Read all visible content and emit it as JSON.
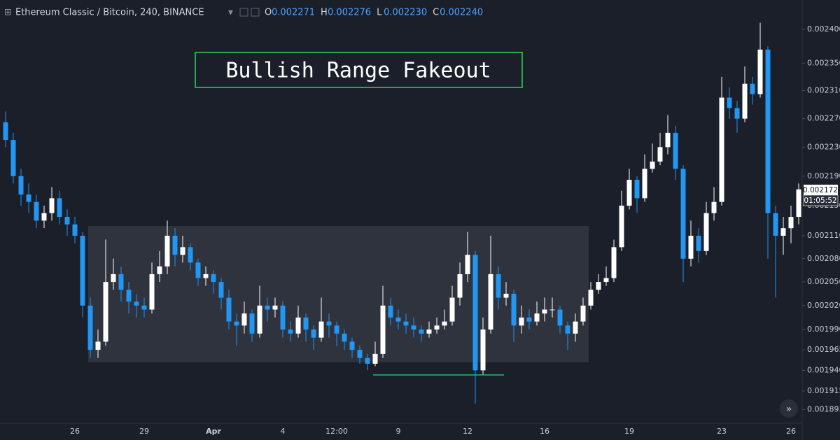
{
  "chart_data": {
    "type": "candlestick",
    "symbol": "Ethereum Classic / Bitcoin, 240, BINANCE",
    "ohlc_legend": [
      {
        "label": "O",
        "value": 0.002271
      },
      {
        "label": "H",
        "value": 0.002276
      },
      {
        "label": "L",
        "value": 0.00223
      },
      {
        "label": "C",
        "value": 0.00224
      }
    ],
    "ohlc_value_labels": [
      "0.002271",
      "0.002276",
      "0.002230",
      "0.002240"
    ],
    "annotation": "Bullish Range Fakeout",
    "last_price": 0.002172,
    "last_price_label": "0.002172",
    "countdown": "01:05:52",
    "up_color": "#ffffff",
    "down_color": "#2196f3",
    "log_scale": true,
    "ylim": [
      0.001877,
      0.0024445
    ],
    "yticks": [
      {
        "value": 0.0024,
        "label": "0.002400"
      },
      {
        "value": 0.00235,
        "label": "0.002350"
      },
      {
        "value": 0.00231,
        "label": "0.002310"
      },
      {
        "value": 0.00227,
        "label": "0.002270"
      },
      {
        "value": 0.00223,
        "label": "0.002230"
      },
      {
        "value": 0.00219,
        "label": "0.002190"
      },
      {
        "value": 0.00215,
        "label": "0.002150"
      },
      {
        "value": 0.00211,
        "label": "0.002110"
      },
      {
        "value": 0.00208,
        "label": "0.002080"
      },
      {
        "value": 0.00205,
        "label": "0.002050"
      },
      {
        "value": 0.00202,
        "label": "0.002020"
      },
      {
        "value": 0.00199,
        "label": "0.001990"
      },
      {
        "value": 0.001965,
        "label": "0.001965"
      },
      {
        "value": 0.00194,
        "label": "0.001940"
      },
      {
        "value": 0.001915,
        "label": "0.001915"
      },
      {
        "value": 0.001893,
        "label": "0.001893"
      }
    ],
    "categories": [
      null,
      null,
      null,
      null,
      null,
      null,
      null,
      null,
      null,
      "26",
      null,
      null,
      null,
      null,
      null,
      null,
      null,
      null,
      "29",
      null,
      null,
      null,
      null,
      null,
      null,
      null,
      null,
      "Apr",
      null,
      null,
      null,
      null,
      null,
      null,
      null,
      null,
      "4",
      null,
      null,
      null,
      null,
      null,
      null,
      "12:00",
      null,
      null,
      null,
      null,
      null,
      null,
      null,
      "9",
      null,
      null,
      null,
      null,
      null,
      null,
      null,
      null,
      "12",
      null,
      null,
      null,
      null,
      null,
      null,
      null,
      null,
      null,
      "16",
      null,
      null,
      null,
      null,
      null,
      null,
      null,
      null,
      null,
      null,
      "19",
      null,
      null,
      null,
      null,
      null,
      null,
      null,
      null,
      null,
      null,
      null,
      "23",
      null,
      null,
      null,
      null,
      null,
      null,
      null,
      null,
      "26",
      null
    ],
    "open": [
      0.002265,
      0.00224,
      0.00219,
      0.002165,
      0.002155,
      0.00213,
      0.00214,
      0.00216,
      0.002135,
      0.002125,
      0.00211,
      0.00202,
      0.001965,
      0.001975,
      0.00205,
      0.00206,
      0.00204,
      0.002025,
      0.00202,
      0.002015,
      0.00206,
      0.00207,
      0.00211,
      0.002085,
      0.002095,
      0.002075,
      0.002055,
      0.00206,
      0.00205,
      0.00203,
      0.002,
      0.001995,
      0.00201,
      0.001985,
      0.00202,
      0.002015,
      0.00202,
      0.00199,
      0.001985,
      0.002005,
      0.00199,
      0.00198,
      0.002,
      0.001995,
      0.001985,
      0.001975,
      0.001965,
      0.001955,
      0.001948,
      0.00196,
      0.00202,
      0.002005,
      0.002,
      0.001995,
      0.00199,
      0.001985,
      0.00199,
      0.001995,
      0.002,
      0.00203,
      0.00206,
      0.002085,
      0.00194,
      0.00199,
      0.00206,
      0.00203,
      0.002035,
      0.001995,
      0.002005,
      0.002,
      0.00201,
      0.002015,
      0.002015,
      0.001995,
      0.001985,
      0.002,
      0.00202,
      0.00204,
      0.00205,
      0.002055,
      0.002095,
      0.00215,
      0.002185,
      0.00216,
      0.0022,
      0.00221,
      0.00223,
      0.00225,
      0.0022,
      0.00208,
      0.00211,
      0.00209,
      0.00214,
      0.002155,
      0.0023,
      0.002285,
      0.00227,
      0.00232,
      0.002305,
      0.00237,
      0.00214,
      0.00211,
      0.00212,
      0.002135
    ],
    "high": [
      0.00228,
      0.00225,
      0.0022,
      0.00218,
      0.002165,
      0.00215,
      0.002175,
      0.00217,
      0.002145,
      0.002135,
      0.002115,
      0.00203,
      0.00199,
      0.002105,
      0.00208,
      0.00207,
      0.00205,
      0.002035,
      0.00203,
      0.002075,
      0.00209,
      0.00213,
      0.00212,
      0.00211,
      0.0021,
      0.00208,
      0.00207,
      0.002065,
      0.002055,
      0.00204,
      0.00201,
      0.002025,
      0.002015,
      0.002045,
      0.00203,
      0.00203,
      0.002025,
      0.002,
      0.00202,
      0.00201,
      0.001995,
      0.00203,
      0.00201,
      0.002,
      0.00199,
      0.00198,
      0.00197,
      0.00196,
      0.001975,
      0.002045,
      0.00203,
      0.002015,
      0.00201,
      0.002005,
      0.001995,
      0.002,
      0.002005,
      0.002015,
      0.002045,
      0.002075,
      0.002115,
      0.00209,
      0.002005,
      0.00211,
      0.00207,
      0.00205,
      0.00204,
      0.00202,
      0.002015,
      0.002025,
      0.00203,
      0.00203,
      0.00202,
      0.002,
      0.00201,
      0.00203,
      0.00205,
      0.00206,
      0.00207,
      0.002105,
      0.00217,
      0.0022,
      0.00219,
      0.00222,
      0.002235,
      0.00225,
      0.002275,
      0.00226,
      0.002205,
      0.00213,
      0.00212,
      0.002155,
      0.002175,
      0.00233,
      0.002315,
      0.002295,
      0.002345,
      0.00233,
      0.00241,
      0.002375,
      0.00215,
      0.002135,
      0.00215,
      0.00218
    ],
    "low": [
      0.00223,
      0.00218,
      0.00215,
      0.00214,
      0.00212,
      0.00212,
      0.00213,
      0.002125,
      0.00211,
      0.0021,
      0.002005,
      0.001955,
      0.001955,
      0.00197,
      0.00204,
      0.002025,
      0.00201,
      0.002005,
      0.002005,
      0.00201,
      0.00205,
      0.00206,
      0.00207,
      0.002075,
      0.002065,
      0.002045,
      0.002045,
      0.002035,
      0.002015,
      0.00199,
      0.00197,
      0.001985,
      0.001975,
      0.00198,
      0.002,
      0.002005,
      0.00198,
      0.001975,
      0.00198,
      0.001975,
      0.001965,
      0.001975,
      0.00198,
      0.00197,
      0.001965,
      0.001955,
      0.001948,
      0.00194,
      0.001945,
      0.001955,
      0.001995,
      0.00199,
      0.001985,
      0.00198,
      0.001975,
      0.00198,
      0.001985,
      0.00199,
      0.001995,
      0.00202,
      0.00205,
      0.0019,
      0.001935,
      0.001985,
      0.002015,
      0.00202,
      0.001975,
      0.001985,
      0.00199,
      0.001995,
      0.002,
      0.002005,
      0.001985,
      0.001965,
      0.001975,
      0.001995,
      0.002015,
      0.002035,
      0.002045,
      0.00205,
      0.00209,
      0.002145,
      0.00214,
      0.002155,
      0.002195,
      0.002205,
      0.00222,
      0.002185,
      0.00205,
      0.00207,
      0.002075,
      0.002085,
      0.00213,
      0.00215,
      0.00227,
      0.00225,
      0.002265,
      0.00229,
      0.0023,
      0.00208,
      0.00203,
      0.002085,
      0.0021,
      0.002125
    ],
    "close": [
      0.00224,
      0.00219,
      0.002165,
      0.002155,
      0.00213,
      0.00214,
      0.00216,
      0.002135,
      0.002125,
      0.00211,
      0.00202,
      0.001965,
      0.001975,
      0.00205,
      0.00206,
      0.00204,
      0.002025,
      0.00202,
      0.002015,
      0.00206,
      0.00207,
      0.00211,
      0.002085,
      0.002095,
      0.002075,
      0.002055,
      0.00206,
      0.00205,
      0.00203,
      0.002,
      0.001995,
      0.00201,
      0.001985,
      0.00202,
      0.002015,
      0.00202,
      0.00199,
      0.001985,
      0.002005,
      0.00199,
      0.00198,
      0.002,
      0.001995,
      0.001985,
      0.001975,
      0.001965,
      0.001955,
      0.001948,
      0.00196,
      0.00202,
      0.002005,
      0.002,
      0.001995,
      0.00199,
      0.001985,
      0.00199,
      0.001995,
      0.002,
      0.00203,
      0.00206,
      0.002085,
      0.00194,
      0.00199,
      0.00206,
      0.00203,
      0.002035,
      0.001995,
      0.002005,
      0.002,
      0.00201,
      0.002015,
      0.002015,
      0.001995,
      0.001985,
      0.002,
      0.00202,
      0.00204,
      0.00205,
      0.002055,
      0.002095,
      0.00215,
      0.002185,
      0.00216,
      0.0022,
      0.00221,
      0.00223,
      0.00225,
      0.0022,
      0.00208,
      0.00211,
      0.00209,
      0.00214,
      0.002155,
      0.0023,
      0.002285,
      0.00227,
      0.00232,
      0.002305,
      0.00237,
      0.00214,
      0.00211,
      0.00212,
      0.002135,
      0.002172
    ]
  }
}
